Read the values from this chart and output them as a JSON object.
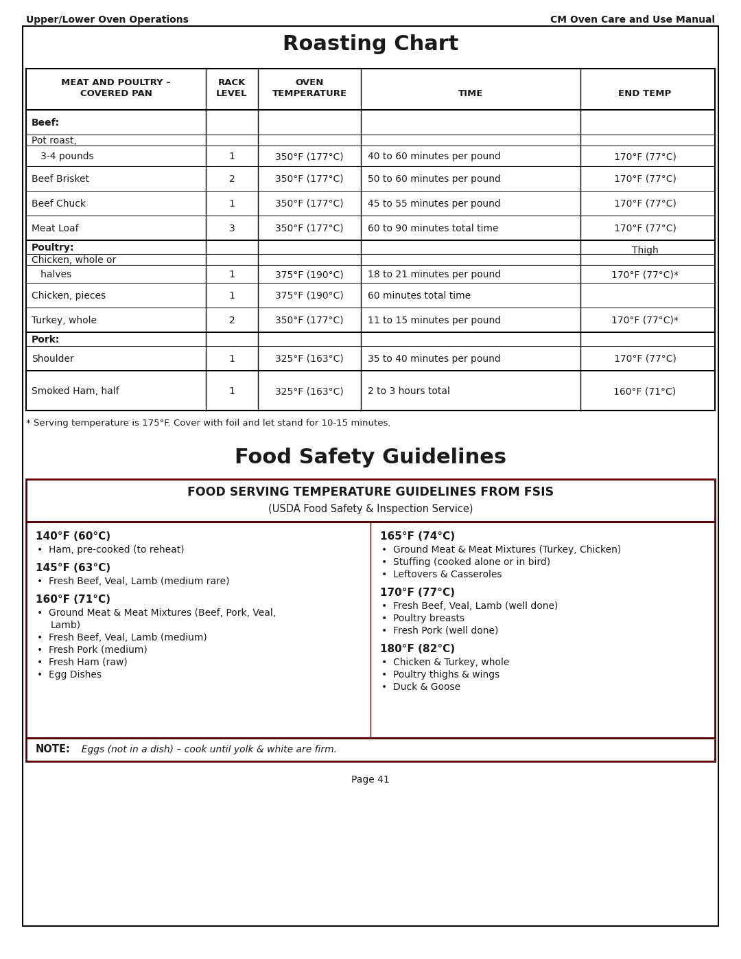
{
  "header_left": "Upper/Lower Oven Operations",
  "header_right": "CM Oven Care and Use Manual",
  "roasting_title": "Roasting Chart",
  "footnote": "* Serving temperature is 175°F. Cover with foil and let stand for 10-15 minutes.",
  "food_safety_title": "Food Safety Guidelines",
  "fsis_title": "FOOD SERVING TEMPERATURE GUIDELINES FROM FSIS",
  "fsis_subtitle": "(USDA Food Safety & Inspection Service)",
  "left_col": [
    {
      "temp": "140°F (60°C)",
      "items": [
        "Ham, pre-cooked (to reheat)"
      ]
    },
    {
      "temp": "145°F (63°C)",
      "items": [
        "Fresh Beef, Veal, Lamb (medium rare)"
      ]
    },
    {
      "temp": "160°F (71°C)",
      "items": [
        "Ground Meat & Meat Mixtures (Beef, Pork, Veal,",
        "  Lamb)",
        "Fresh Beef, Veal, Lamb (medium)",
        "Fresh Pork (medium)",
        "Fresh Ham (raw)",
        "Egg Dishes"
      ]
    }
  ],
  "right_col": [
    {
      "temp": "165°F (74°C)",
      "items": [
        "Ground Meat & Meat Mixtures (Turkey, Chicken)",
        "Stuffing (cooked alone or in bird)",
        "Leftovers & Casseroles"
      ]
    },
    {
      "temp": "170°F (77°C)",
      "items": [
        "Fresh Beef, Veal, Lamb (well done)",
        "Poultry breasts",
        "Fresh Pork (well done)"
      ]
    },
    {
      "temp": "180°F (82°C)",
      "items": [
        "Chicken & Turkey, whole",
        "Poultry thighs & wings",
        "Duck & Goose"
      ]
    }
  ],
  "note_bold": "NOTE:",
  "note_italic": "  Eggs (not in a dish) – cook until yolk & white are firm.",
  "page": "Page 41",
  "bg_color": "#ffffff"
}
